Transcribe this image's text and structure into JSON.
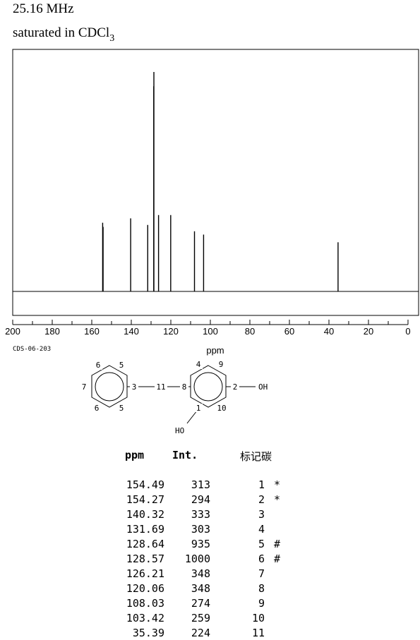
{
  "header": {
    "frequency": "25.16 MHz",
    "solvent_prefix": "saturated in CDCl",
    "solvent_subscript": "3"
  },
  "chart_data": {
    "type": "line",
    "title": "",
    "xlabel": "ppm",
    "ylabel": "",
    "xlim": [
      200,
      0
    ],
    "x_ticks": [
      "200",
      "180",
      "160",
      "140",
      "120",
      "100",
      "80",
      "60",
      "40",
      "20",
      "0"
    ],
    "x_tick_values": [
      200,
      180,
      160,
      140,
      120,
      100,
      80,
      60,
      40,
      20,
      0
    ],
    "grid": false,
    "peaks": [
      {
        "ppm": 154.49,
        "intensity": 313
      },
      {
        "ppm": 154.27,
        "intensity": 294
      },
      {
        "ppm": 140.32,
        "intensity": 333
      },
      {
        "ppm": 131.69,
        "intensity": 303
      },
      {
        "ppm": 128.64,
        "intensity": 935
      },
      {
        "ppm": 128.57,
        "intensity": 1000
      },
      {
        "ppm": 126.21,
        "intensity": 348
      },
      {
        "ppm": 120.06,
        "intensity": 348
      },
      {
        "ppm": 108.03,
        "intensity": 274
      },
      {
        "ppm": 103.42,
        "intensity": 259
      },
      {
        "ppm": 35.39,
        "intensity": 224
      }
    ]
  },
  "code": "CDS-06-203",
  "structure": {
    "atoms": [
      "6",
      "5",
      "7",
      "3",
      "11",
      "8",
      "6",
      "5",
      "4",
      "9",
      "2",
      "OH",
      "1",
      "10",
      "HO"
    ]
  },
  "table": {
    "headers": {
      "ppm": "ppm",
      "int": "Int.",
      "carbon": "标记碳"
    },
    "rows": [
      {
        "ppm": "154.49",
        "int": "313",
        "carbon": "1",
        "mark": "*"
      },
      {
        "ppm": "154.27",
        "int": "294",
        "carbon": "2",
        "mark": "*"
      },
      {
        "ppm": "140.32",
        "int": "333",
        "carbon": "3",
        "mark": ""
      },
      {
        "ppm": "131.69",
        "int": "303",
        "carbon": "4",
        "mark": ""
      },
      {
        "ppm": "128.64",
        "int": "935",
        "carbon": "5",
        "mark": "#"
      },
      {
        "ppm": "128.57",
        "int": "1000",
        "carbon": "6",
        "mark": "#"
      },
      {
        "ppm": "126.21",
        "int": "348",
        "carbon": "7",
        "mark": ""
      },
      {
        "ppm": "120.06",
        "int": "348",
        "carbon": "8",
        "mark": ""
      },
      {
        "ppm": "108.03",
        "int": "274",
        "carbon": "9",
        "mark": ""
      },
      {
        "ppm": "103.42",
        "int": "259",
        "carbon": "10",
        "mark": ""
      },
      {
        "ppm": "35.39",
        "int": "224",
        "carbon": "11",
        "mark": ""
      }
    ]
  }
}
